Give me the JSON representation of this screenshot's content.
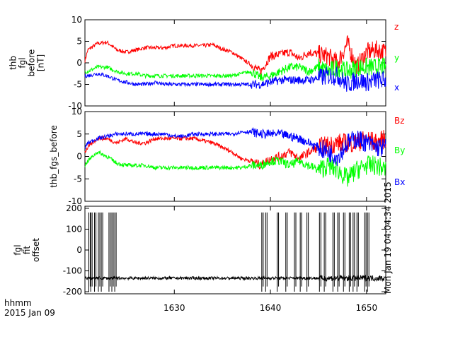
{
  "chart_data": [
    {
      "type": "line",
      "ylabel": [
        "thb",
        "fgl",
        "before",
        "[nT]"
      ],
      "ylim": [
        -10,
        10
      ],
      "yticks": [
        10,
        5,
        0,
        -5,
        -10
      ],
      "xlim": [
        1620.7,
        1652
      ],
      "series": [
        {
          "name": "z",
          "color": "#ff0000",
          "x": [
            1620.7,
            1621,
            1622,
            1623,
            1624,
            1625,
            1626,
            1627,
            1628,
            1629,
            1630,
            1631,
            1632,
            1633,
            1634,
            1635,
            1636,
            1637,
            1638,
            1639,
            1640,
            1641,
            1642,
            1643,
            1644,
            1645,
            1646,
            1647,
            1648,
            1649,
            1650,
            1651,
            1652
          ],
          "y": [
            0.5,
            3,
            4.5,
            4.8,
            3,
            2.5,
            3,
            3.5,
            3.5,
            3.5,
            4,
            4,
            4,
            4,
            4.2,
            3.2,
            2.5,
            1,
            -0.5,
            -2,
            1.5,
            2,
            2.5,
            1,
            2.5,
            2,
            1.5,
            0,
            4.5,
            -1,
            2.5,
            3,
            2.5
          ]
        },
        {
          "name": "y",
          "color": "#00ff00",
          "x": [
            1620.7,
            1621,
            1622,
            1623,
            1624,
            1625,
            1626,
            1627,
            1628,
            1629,
            1630,
            1631,
            1632,
            1633,
            1634,
            1635,
            1636,
            1637,
            1638,
            1639,
            1640,
            1641,
            1642,
            1643,
            1644,
            1645,
            1646,
            1647,
            1648,
            1649,
            1650,
            1651,
            1652
          ],
          "y": [
            -2,
            -2,
            -1,
            -1,
            -2,
            -2.5,
            -2.5,
            -3,
            -3,
            -3,
            -3,
            -3,
            -3,
            -3,
            -3,
            -3,
            -3,
            -2.5,
            -2,
            -3.5,
            -3,
            -2,
            -1,
            -1,
            -2,
            -1,
            -2,
            -1,
            -2,
            -1,
            -1,
            -1,
            -1
          ]
        },
        {
          "name": "x",
          "color": "#0000ff",
          "x": [
            1620.7,
            1621,
            1622,
            1623,
            1624,
            1625,
            1626,
            1627,
            1628,
            1629,
            1630,
            1631,
            1632,
            1633,
            1634,
            1635,
            1636,
            1637,
            1638,
            1639,
            1640,
            1641,
            1642,
            1643,
            1644,
            1645,
            1646,
            1647,
            1648,
            1649,
            1650,
            1651,
            1652
          ],
          "y": [
            -3,
            -3,
            -2.5,
            -3,
            -4,
            -4.5,
            -5,
            -5,
            -4.5,
            -5,
            -5,
            -5,
            -5,
            -5,
            -5,
            -5,
            -5,
            -5,
            -5,
            -5,
            -4.5,
            -4,
            -4,
            -4,
            -4,
            -3.5,
            -3,
            -3,
            -5,
            -4,
            -4.5,
            -4,
            -4
          ]
        }
      ]
    },
    {
      "type": "line",
      "ylabel": [
        "thb_fgs_before"
      ],
      "ylim": [
        -10,
        10
      ],
      "yticks": [
        10,
        5,
        0,
        -5,
        -10
      ],
      "xlim": [
        1620.7,
        1652
      ],
      "series": [
        {
          "name": "Bz",
          "color": "#ff0000",
          "x": [
            1620.7,
            1621,
            1622,
            1623,
            1624,
            1625,
            1626,
            1627,
            1628,
            1629,
            1630,
            1631,
            1632,
            1633,
            1634,
            1635,
            1636,
            1637,
            1638,
            1639,
            1640,
            1641,
            1642,
            1643,
            1644,
            1645,
            1646,
            1647,
            1648,
            1649,
            1650,
            1651,
            1652
          ],
          "y": [
            1,
            2,
            4,
            4,
            3,
            4,
            3,
            3,
            4,
            4,
            4,
            4,
            4,
            3.5,
            3,
            2,
            1,
            -0.5,
            -1,
            -2,
            -0.5,
            0,
            1,
            -0.5,
            1,
            2,
            2.5,
            3,
            3,
            3,
            4,
            3,
            4
          ]
        },
        {
          "name": "By",
          "color": "#00ff00",
          "x": [
            1620.7,
            1621,
            1622,
            1623,
            1624,
            1625,
            1626,
            1627,
            1628,
            1629,
            1630,
            1631,
            1632,
            1633,
            1634,
            1635,
            1636,
            1637,
            1638,
            1639,
            1640,
            1641,
            1642,
            1643,
            1644,
            1645,
            1646,
            1647,
            1648,
            1649,
            1650,
            1651,
            1652
          ],
          "y": [
            -2,
            -1,
            1,
            0,
            -1.5,
            -2,
            -2,
            -2,
            -2.5,
            -2.5,
            -2.5,
            -2.5,
            -2.5,
            -2.5,
            -2.5,
            -2.5,
            -2.5,
            -2.5,
            -2,
            -2,
            -1,
            -1,
            -2,
            -1,
            -2,
            -3,
            -2,
            -3,
            -5,
            -3,
            -2,
            -2,
            -3
          ]
        },
        {
          "name": "Bx",
          "color": "#0000ff",
          "x": [
            1620.7,
            1621,
            1622,
            1623,
            1624,
            1625,
            1626,
            1627,
            1628,
            1629,
            1630,
            1631,
            1632,
            1633,
            1634,
            1635,
            1636,
            1637,
            1638,
            1639,
            1640,
            1641,
            1642,
            1643,
            1644,
            1645,
            1646,
            1647,
            1648,
            1649,
            1650,
            1651,
            1652
          ],
          "y": [
            2,
            3,
            4,
            4.5,
            5,
            5,
            5,
            5,
            5,
            5,
            4.5,
            4.5,
            5,
            5,
            5,
            5,
            5,
            5.5,
            5.5,
            5,
            5,
            5,
            4.5,
            4,
            3,
            2,
            1,
            0,
            3,
            4,
            3,
            2,
            2
          ]
        }
      ]
    },
    {
      "type": "line",
      "ylabel": [
        "fgl",
        "fit",
        "offset"
      ],
      "ylim": [
        -210,
        210
      ],
      "yticks": [
        200,
        100,
        0,
        -100,
        -200
      ],
      "xlim": [
        1620.7,
        1652
      ],
      "baseline": -135,
      "series": [
        {
          "name": "",
          "color": "#000000",
          "spike_x": [
            1621.1,
            1621.3,
            1621.7,
            1622.1,
            1622.4,
            1623.2,
            1623.5,
            1623.8,
            1639.1,
            1639.5,
            1640.7,
            1641.6,
            1642.5,
            1643.1,
            1643.8,
            1645.1,
            1645.6,
            1646.5,
            1647.0,
            1647.6,
            1648.2,
            1648.6,
            1649.0,
            1649.8,
            1650.1
          ],
          "spike_top": 180,
          "spike_bottom": -200
        }
      ]
    }
  ],
  "xaxis": {
    "ticks": [
      1630,
      1640,
      1650
    ],
    "labels": [
      "1630",
      "1640",
      "1650"
    ]
  },
  "footer": {
    "units": "hhmm",
    "date": "2015 Jan 09"
  },
  "stamp": "Mon Jan 19 04:04:34 2015"
}
